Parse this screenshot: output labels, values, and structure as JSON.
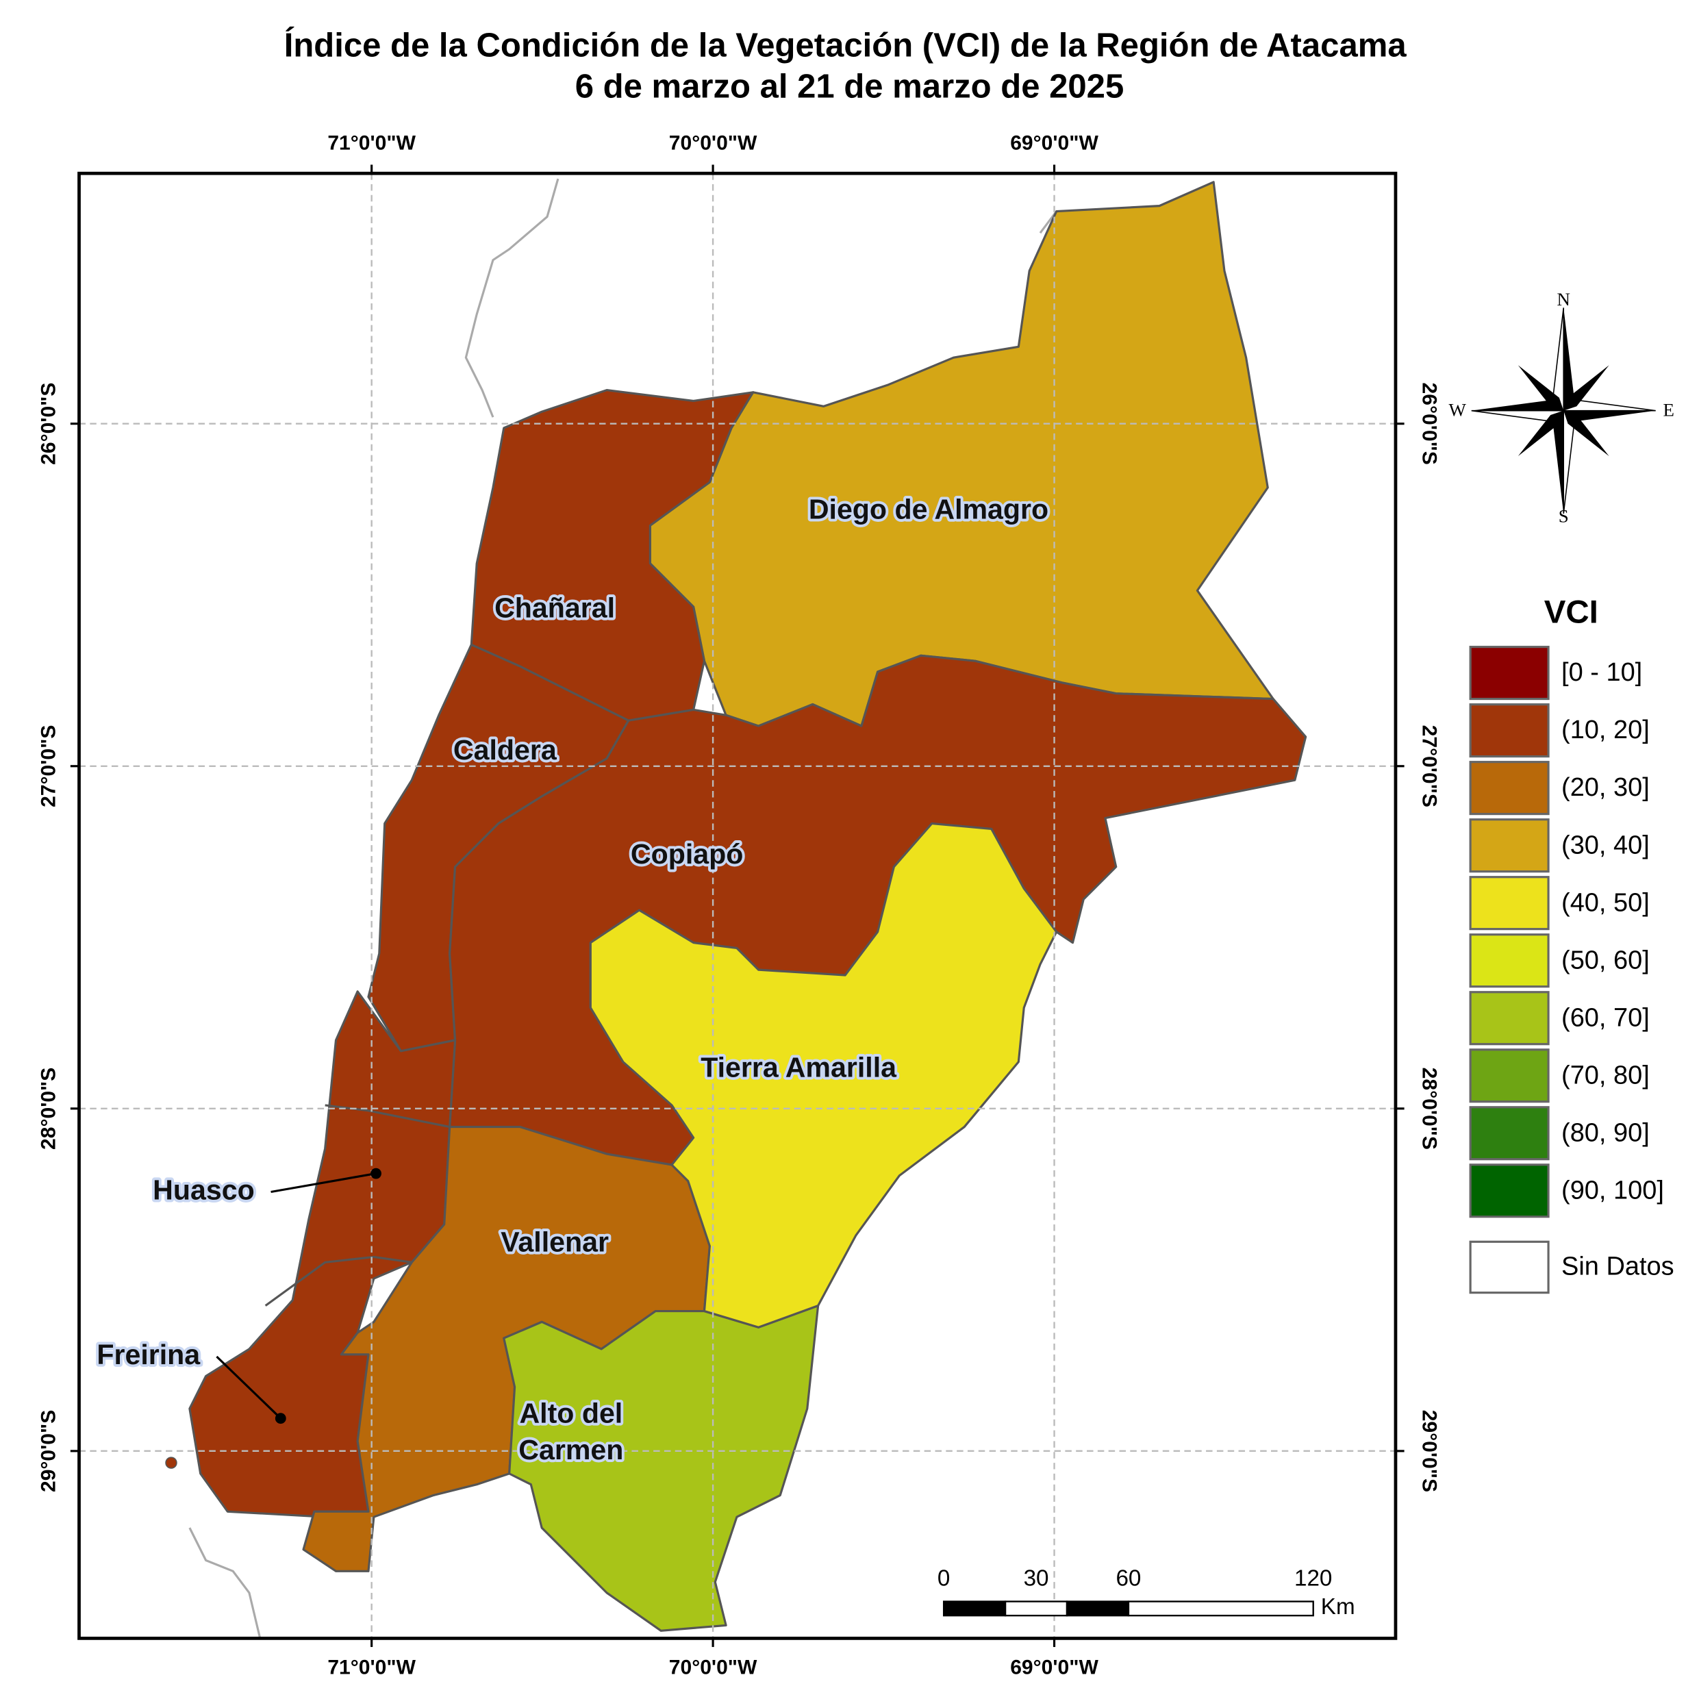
{
  "title": [
    "Índice de la Condición de la Vegetación (VCI) de la Región de Atacama",
    "6 de marzo al 21 de marzo de 2025"
  ],
  "map": {
    "xlim": [
      -71.857,
      -68.0
    ],
    "ylim": [
      -25.269,
      -29.547
    ],
    "longitudes": [
      {
        "value": -71,
        "label": "71°0'0\"W"
      },
      {
        "value": -70,
        "label": "70°0'0\"W"
      },
      {
        "value": -69,
        "label": "69°0'0\"W"
      }
    ],
    "latitudes": [
      {
        "value": -26,
        "label": "26°0'0\"S"
      },
      {
        "value": -27,
        "label": "27°0'0\"S"
      },
      {
        "value": -28,
        "label": "28°0'0\"S"
      },
      {
        "value": -29,
        "label": "29°0'0\"S"
      }
    ],
    "grid": true
  },
  "communes": [
    "Diego de Almagro",
    "Chañaral",
    "Caldera",
    "Copiapó",
    "Tierra Amarilla",
    "Huasco",
    "Vallenar",
    "Freirina",
    "Alto del Carmen"
  ],
  "compass": {
    "north": "N",
    "south": "S",
    "east": "E",
    "west": "W"
  },
  "legend": {
    "title": "VCI",
    "items": [
      {
        "label": "[0 - 10]",
        "color": "#8b0000"
      },
      {
        "label": "(10, 20]",
        "color": "#a0360a"
      },
      {
        "label": "(20, 30]",
        "color": "#b8690a"
      },
      {
        "label": "(30, 40]",
        "color": "#d4a616"
      },
      {
        "label": "(40, 50]",
        "color": "#ede21c"
      },
      {
        "label": "(50, 60]",
        "color": "#dbe516"
      },
      {
        "label": "(60, 70]",
        "color": "#a8c418"
      },
      {
        "label": "(70, 80]",
        "color": "#6ea514"
      },
      {
        "label": "(80, 90]",
        "color": "#2e8010"
      },
      {
        "label": "(90, 100]",
        "color": "#006400"
      }
    ],
    "no_data": {
      "label": "Sin Datos",
      "color": "#ffffff"
    }
  },
  "scale_bar": {
    "ticks": [
      0,
      30,
      60,
      120
    ],
    "unit": "Km"
  }
}
